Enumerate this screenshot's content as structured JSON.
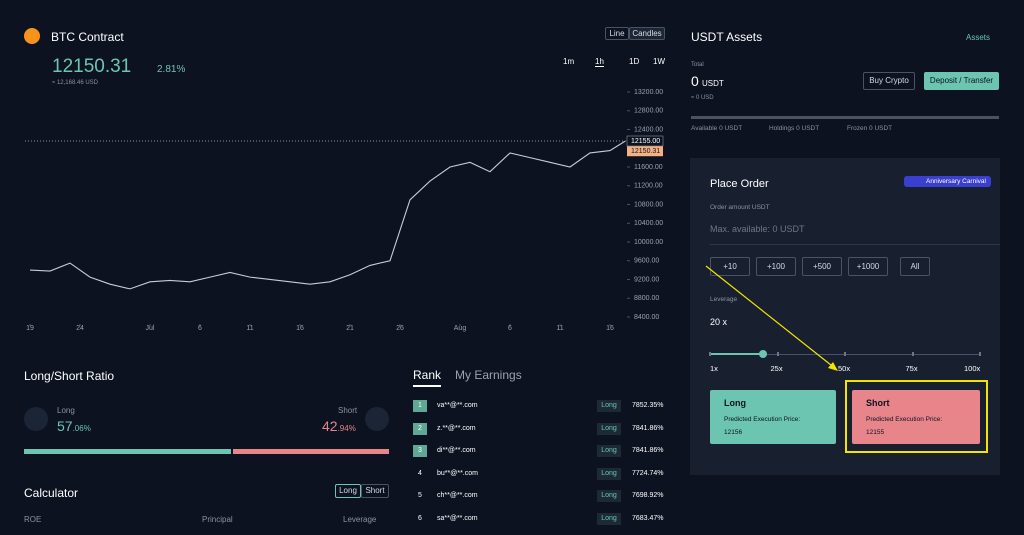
{
  "header": {
    "title": "BTC Contract",
    "price": "12150.31",
    "change": "2.81%",
    "usd": "≈ 12,168.46 USD",
    "modes": [
      "Line",
      "Candles"
    ],
    "intervals": [
      "1m",
      "1h",
      "1D",
      "1W"
    ]
  },
  "chart_data": {
    "type": "line",
    "color": "#c8ccd4",
    "x": [
      0,
      2,
      4,
      6,
      8,
      10,
      12,
      14,
      16,
      18,
      20,
      22,
      24,
      26,
      28,
      30,
      32,
      34,
      36,
      38,
      40,
      42,
      44,
      46,
      48,
      50,
      52,
      54,
      56,
      58,
      59.5
    ],
    "values": [
      9400,
      9380,
      9550,
      9250,
      9100,
      9000,
      9150,
      9180,
      9150,
      9250,
      9350,
      9250,
      9200,
      9150,
      9100,
      9150,
      9300,
      9500,
      9600,
      10900,
      11300,
      11600,
      11700,
      11500,
      11900,
      11800,
      11700,
      11600,
      11900,
      11950,
      12150
    ],
    "xlim": [
      -0.5,
      59.7
    ],
    "xticks": [
      {
        "value": 0,
        "label": "19"
      },
      {
        "value": 5,
        "label": "24"
      },
      {
        "value": 12,
        "label": "Jul"
      },
      {
        "value": 17,
        "label": "6"
      },
      {
        "value": 22,
        "label": "11"
      },
      {
        "value": 27,
        "label": "16"
      },
      {
        "value": 32,
        "label": "21"
      },
      {
        "value": 37,
        "label": "26"
      },
      {
        "value": 43,
        "label": "Aug"
      },
      {
        "value": 48,
        "label": "6"
      },
      {
        "value": 53,
        "label": "11"
      },
      {
        "value": 58,
        "label": "16"
      }
    ],
    "ylim": [
      8250,
      13350
    ],
    "yticks": [
      {
        "value": 13200,
        "label": "13200.00"
      },
      {
        "value": 12800,
        "label": "12800.00"
      },
      {
        "value": 12400,
        "label": "12400.00"
      },
      {
        "value": 11600,
        "label": "11600.00"
      },
      {
        "value": 11200,
        "label": "11200.00"
      },
      {
        "value": 10800,
        "label": "10800.00"
      },
      {
        "value": 10400,
        "label": "10400.00"
      },
      {
        "value": 10000,
        "label": "10000.00"
      },
      {
        "value": 9600,
        "label": "9600.00"
      },
      {
        "value": 9200,
        "label": "9200.00"
      },
      {
        "value": 8800,
        "label": "8800.00"
      },
      {
        "value": 8400,
        "label": "8400.00"
      }
    ],
    "current_line": {
      "value": 12155,
      "label": "12155.00"
    },
    "last_price": {
      "value": 12150.31,
      "label": "12150.31"
    }
  },
  "ratio": {
    "title": "Long/Short Ratio",
    "long": {
      "label": "Long",
      "value": 57.06,
      "int": "57",
      "frac": ".06%"
    },
    "short": {
      "label": "Short",
      "value": 42.94,
      "int": "42",
      "frac": ".94%"
    }
  },
  "calculator": {
    "title": "Calculator",
    "tabs": [
      "Long",
      "Short"
    ],
    "fields": [
      "ROE",
      "Principal",
      "Leverage"
    ]
  },
  "rank": {
    "tabs": [
      "Rank",
      "My Earnings"
    ],
    "rows": [
      [
        "1",
        "va**@**.com",
        "Long",
        "7852.35%"
      ],
      [
        "2",
        "z.**@**.com",
        "Long",
        "7841.86%"
      ],
      [
        "3",
        "di**@**.com",
        "Long",
        "7841.86%"
      ],
      [
        "4",
        "bu**@**.com",
        "Long",
        "7724.74%"
      ],
      [
        "5",
        "ch**@**.com",
        "Long",
        "7698.92%"
      ],
      [
        "6",
        "sa**@**.com",
        "Long",
        "7683.47%"
      ]
    ]
  },
  "assets": {
    "title": "USDT Assets",
    "link": "Assets",
    "total_label": "Total",
    "total": "0",
    "unit": "USDT",
    "usd": "≈ 0 USD",
    "buy": "Buy Crypto",
    "deposit": "Deposit / Transfer",
    "balances": [
      "Available 0 USDT",
      "Holdings 0 USDT",
      "Frozen 0 USDT"
    ]
  },
  "order": {
    "title": "Place Order",
    "badge": "Anniversary Carnival",
    "amount_label": "Order amount USDT",
    "max": "Max. available: 0 USDT",
    "buttons": [
      "+10",
      "+100",
      "+500",
      "+1000",
      "All"
    ],
    "leverage_label": "Leverage",
    "leverage": {
      "value": 20,
      "label": "20 x"
    },
    "slider_ticks": [
      {
        "value": 1,
        "label": "1x"
      },
      {
        "value": 25,
        "label": "25x"
      },
      {
        "value": 50,
        "label": "50x"
      },
      {
        "value": 75,
        "label": "75x"
      },
      {
        "value": 100,
        "label": "100x"
      }
    ],
    "long": {
      "title": "Long",
      "price_label": "Predicted Execution Price:",
      "price": "12156"
    },
    "short": {
      "title": "Short",
      "price_label": "Predicted Execution Price:",
      "price": "12155"
    }
  }
}
